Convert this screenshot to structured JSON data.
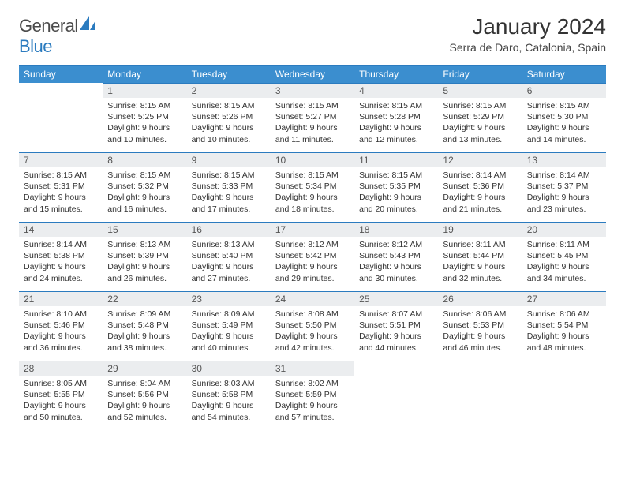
{
  "brand": {
    "part1": "General",
    "part2": "Blue"
  },
  "title": "January 2024",
  "location": "Serra de Daro, Catalonia, Spain",
  "colors": {
    "header_bg": "#3b8ecf",
    "header_border": "#2b7bbf",
    "daynum_bg": "#ebedef",
    "text": "#333333",
    "brand_gray": "#4a4a4a",
    "brand_blue": "#2b7bbf"
  },
  "weekdays": [
    "Sunday",
    "Monday",
    "Tuesday",
    "Wednesday",
    "Thursday",
    "Friday",
    "Saturday"
  ],
  "first_weekday_index": 1,
  "days": [
    {
      "n": 1,
      "sr": "8:15 AM",
      "ss": "5:25 PM",
      "dl": "9 hours and 10 minutes."
    },
    {
      "n": 2,
      "sr": "8:15 AM",
      "ss": "5:26 PM",
      "dl": "9 hours and 10 minutes."
    },
    {
      "n": 3,
      "sr": "8:15 AM",
      "ss": "5:27 PM",
      "dl": "9 hours and 11 minutes."
    },
    {
      "n": 4,
      "sr": "8:15 AM",
      "ss": "5:28 PM",
      "dl": "9 hours and 12 minutes."
    },
    {
      "n": 5,
      "sr": "8:15 AM",
      "ss": "5:29 PM",
      "dl": "9 hours and 13 minutes."
    },
    {
      "n": 6,
      "sr": "8:15 AM",
      "ss": "5:30 PM",
      "dl": "9 hours and 14 minutes."
    },
    {
      "n": 7,
      "sr": "8:15 AM",
      "ss": "5:31 PM",
      "dl": "9 hours and 15 minutes."
    },
    {
      "n": 8,
      "sr": "8:15 AM",
      "ss": "5:32 PM",
      "dl": "9 hours and 16 minutes."
    },
    {
      "n": 9,
      "sr": "8:15 AM",
      "ss": "5:33 PM",
      "dl": "9 hours and 17 minutes."
    },
    {
      "n": 10,
      "sr": "8:15 AM",
      "ss": "5:34 PM",
      "dl": "9 hours and 18 minutes."
    },
    {
      "n": 11,
      "sr": "8:15 AM",
      "ss": "5:35 PM",
      "dl": "9 hours and 20 minutes."
    },
    {
      "n": 12,
      "sr": "8:14 AM",
      "ss": "5:36 PM",
      "dl": "9 hours and 21 minutes."
    },
    {
      "n": 13,
      "sr": "8:14 AM",
      "ss": "5:37 PM",
      "dl": "9 hours and 23 minutes."
    },
    {
      "n": 14,
      "sr": "8:14 AM",
      "ss": "5:38 PM",
      "dl": "9 hours and 24 minutes."
    },
    {
      "n": 15,
      "sr": "8:13 AM",
      "ss": "5:39 PM",
      "dl": "9 hours and 26 minutes."
    },
    {
      "n": 16,
      "sr": "8:13 AM",
      "ss": "5:40 PM",
      "dl": "9 hours and 27 minutes."
    },
    {
      "n": 17,
      "sr": "8:12 AM",
      "ss": "5:42 PM",
      "dl": "9 hours and 29 minutes."
    },
    {
      "n": 18,
      "sr": "8:12 AM",
      "ss": "5:43 PM",
      "dl": "9 hours and 30 minutes."
    },
    {
      "n": 19,
      "sr": "8:11 AM",
      "ss": "5:44 PM",
      "dl": "9 hours and 32 minutes."
    },
    {
      "n": 20,
      "sr": "8:11 AM",
      "ss": "5:45 PM",
      "dl": "9 hours and 34 minutes."
    },
    {
      "n": 21,
      "sr": "8:10 AM",
      "ss": "5:46 PM",
      "dl": "9 hours and 36 minutes."
    },
    {
      "n": 22,
      "sr": "8:09 AM",
      "ss": "5:48 PM",
      "dl": "9 hours and 38 minutes."
    },
    {
      "n": 23,
      "sr": "8:09 AM",
      "ss": "5:49 PM",
      "dl": "9 hours and 40 minutes."
    },
    {
      "n": 24,
      "sr": "8:08 AM",
      "ss": "5:50 PM",
      "dl": "9 hours and 42 minutes."
    },
    {
      "n": 25,
      "sr": "8:07 AM",
      "ss": "5:51 PM",
      "dl": "9 hours and 44 minutes."
    },
    {
      "n": 26,
      "sr": "8:06 AM",
      "ss": "5:53 PM",
      "dl": "9 hours and 46 minutes."
    },
    {
      "n": 27,
      "sr": "8:06 AM",
      "ss": "5:54 PM",
      "dl": "9 hours and 48 minutes."
    },
    {
      "n": 28,
      "sr": "8:05 AM",
      "ss": "5:55 PM",
      "dl": "9 hours and 50 minutes."
    },
    {
      "n": 29,
      "sr": "8:04 AM",
      "ss": "5:56 PM",
      "dl": "9 hours and 52 minutes."
    },
    {
      "n": 30,
      "sr": "8:03 AM",
      "ss": "5:58 PM",
      "dl": "9 hours and 54 minutes."
    },
    {
      "n": 31,
      "sr": "8:02 AM",
      "ss": "5:59 PM",
      "dl": "9 hours and 57 minutes."
    }
  ],
  "labels": {
    "sunrise": "Sunrise:",
    "sunset": "Sunset:",
    "daylight": "Daylight:"
  }
}
